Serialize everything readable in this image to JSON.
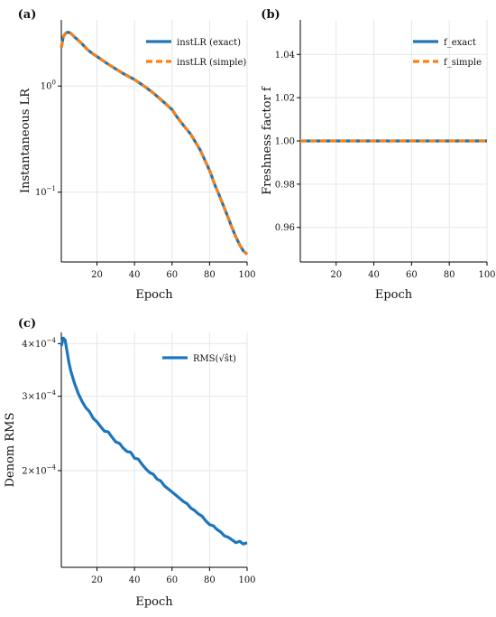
{
  "colors": {
    "blue": "#1f77b4",
    "orange": "#ff7f0e",
    "blue_c": "#1b76bd"
  },
  "chart_data": [
    {
      "panel": "(a)",
      "type": "line",
      "ylabel": "Instantaneous LR",
      "xlabel": "Epoch",
      "yscale": "log",
      "xlim": [
        1,
        100
      ],
      "ylim": [
        0.022,
        4.2
      ],
      "xticks": [
        20,
        40,
        60,
        80,
        100
      ],
      "yticks": [
        {
          "value": 1,
          "label": "10^0"
        },
        {
          "value": 0.1,
          "label": "10^-1"
        }
      ],
      "grid": true,
      "legend": "top-right",
      "series": [
        {
          "name": "instLR (exact)",
          "style": "solid",
          "color": "#1f77b4",
          "x": [
            1,
            2,
            3,
            4,
            5,
            6,
            8,
            10,
            12,
            15,
            18,
            20,
            25,
            30,
            35,
            40,
            45,
            50,
            55,
            60,
            62,
            65,
            70,
            75,
            80,
            83,
            85,
            88,
            90,
            92,
            94,
            96,
            98,
            100
          ],
          "y": [
            2.3,
            2.9,
            3.1,
            3.2,
            3.2,
            3.15,
            2.9,
            2.7,
            2.5,
            2.2,
            2.0,
            1.9,
            1.65,
            1.45,
            1.28,
            1.15,
            1.0,
            0.86,
            0.72,
            0.6,
            0.53,
            0.45,
            0.35,
            0.25,
            0.16,
            0.115,
            0.095,
            0.07,
            0.057,
            0.046,
            0.038,
            0.032,
            0.028,
            0.026
          ]
        },
        {
          "name": "instLR (simple)",
          "style": "dashed",
          "color": "#ff7f0e",
          "x": [
            1,
            2,
            3,
            4,
            5,
            6,
            8,
            10,
            12,
            15,
            18,
            20,
            25,
            30,
            35,
            40,
            45,
            50,
            55,
            60,
            62,
            65,
            70,
            75,
            80,
            83,
            85,
            88,
            90,
            92,
            94,
            96,
            98,
            100
          ],
          "y": [
            2.3,
            2.9,
            3.1,
            3.2,
            3.2,
            3.15,
            2.9,
            2.7,
            2.5,
            2.2,
            2.0,
            1.9,
            1.65,
            1.45,
            1.28,
            1.15,
            1.0,
            0.86,
            0.72,
            0.6,
            0.53,
            0.45,
            0.35,
            0.25,
            0.16,
            0.115,
            0.095,
            0.07,
            0.057,
            0.046,
            0.038,
            0.032,
            0.028,
            0.026
          ]
        }
      ]
    },
    {
      "panel": "(b)",
      "type": "line",
      "ylabel": "Freshness factor f",
      "xlabel": "Epoch",
      "yscale": "linear",
      "xlim": [
        1,
        100
      ],
      "ylim": [
        0.944,
        1.056
      ],
      "xticks": [
        20,
        40,
        60,
        80,
        100
      ],
      "yticks": [
        {
          "value": 0.96,
          "label": "0.96"
        },
        {
          "value": 0.98,
          "label": "0.98"
        },
        {
          "value": 1.0,
          "label": "1.00"
        },
        {
          "value": 1.02,
          "label": "1.02"
        },
        {
          "value": 1.04,
          "label": "1.04"
        }
      ],
      "grid": true,
      "legend": "top-right",
      "series": [
        {
          "name": "f_exact",
          "style": "solid",
          "color": "#1f77b4",
          "x": [
            1,
            100
          ],
          "y": [
            1.0,
            1.0
          ]
        },
        {
          "name": "f_simple",
          "style": "dashed",
          "color": "#ff7f0e",
          "x": [
            1,
            100
          ],
          "y": [
            1.0,
            1.0
          ]
        }
      ]
    },
    {
      "panel": "(c)",
      "type": "line",
      "ylabel": "Denom RMS",
      "xlabel": "Epoch",
      "yscale": "log",
      "xlim": [
        1,
        100
      ],
      "ylim": [
        0.000118,
        0.000425
      ],
      "xticks": [
        20,
        40,
        60,
        80,
        100
      ],
      "yticks": [
        {
          "value": 0.0004,
          "label": "4×10^-4"
        },
        {
          "value": 0.0003,
          "label": "3×10^-4"
        },
        {
          "value": 0.0002,
          "label": "2×10^-4"
        }
      ],
      "grid": true,
      "legend": "top-right",
      "series": [
        {
          "name": "RMS(√ŝt)",
          "style": "solid",
          "color": "#1b76bd",
          "x": [
            1,
            2,
            3,
            4,
            5,
            6,
            8,
            10,
            12,
            14,
            16,
            18,
            20,
            22,
            24,
            26,
            28,
            30,
            32,
            34,
            36,
            38,
            40,
            42,
            44,
            46,
            48,
            50,
            52,
            54,
            56,
            58,
            60,
            62,
            64,
            66,
            68,
            70,
            72,
            74,
            76,
            78,
            80,
            82,
            84,
            86,
            88,
            90,
            92,
            94,
            96,
            98,
            100
          ],
          "y": [
            0.000395,
            0.000412,
            0.000408,
            0.000385,
            0.000362,
            0.000345,
            0.000322,
            0.000305,
            0.000292,
            0.000282,
            0.000276,
            0.000266,
            0.000261,
            0.000254,
            0.000248,
            0.000247,
            0.00024,
            0.000234,
            0.000232,
            0.000226,
            0.000222,
            0.000221,
            0.000214,
            0.000213,
            0.000207,
            0.000202,
            0.000198,
            0.000196,
            0.000191,
            0.000189,
            0.000184,
            0.000181,
            0.000178,
            0.000175,
            0.000172,
            0.000169,
            0.000167,
            0.000163,
            0.000161,
            0.000158,
            0.000156,
            0.000152,
            0.000149,
            0.000148,
            0.000145,
            0.000143,
            0.00014,
            0.000139,
            0.000137,
            0.000135,
            0.000136,
            0.000134,
            0.000135
          ]
        }
      ]
    }
  ]
}
